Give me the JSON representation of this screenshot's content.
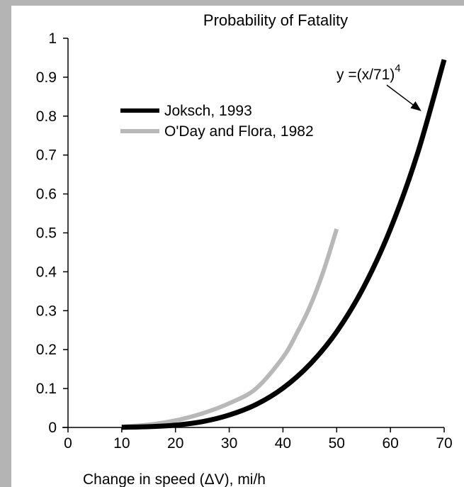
{
  "chart_data": {
    "type": "line",
    "title": "Probability of Fatality",
    "xlabel": "Change in speed (ΔV), mi/h",
    "ylabel": "",
    "xlim": [
      0,
      70
    ],
    "ylim": [
      0,
      1
    ],
    "x_ticks": [
      0,
      10,
      20,
      30,
      40,
      50,
      60,
      70
    ],
    "x_tick_labels": [
      "0",
      "10",
      "20",
      "30",
      "40",
      "50",
      "60",
      "70"
    ],
    "y_ticks": [
      0,
      0.1,
      0.2,
      0.3,
      0.4,
      0.5,
      0.6,
      0.7,
      0.8,
      0.9,
      1
    ],
    "y_tick_labels": [
      "0",
      "0.1",
      "0.2",
      "0.3",
      "0.4",
      "0.5",
      "0.6",
      "0.7",
      "0.8",
      "0.9",
      "1"
    ],
    "grid": false,
    "legend_position": "upper-left",
    "series": [
      {
        "name": "Joksch, 1993",
        "color": "#000000",
        "x": [
          10,
          15,
          20,
          25,
          30,
          35,
          40,
          45,
          50,
          55,
          60,
          65,
          70
        ],
        "y": [
          0.0004,
          0.002,
          0.006,
          0.015,
          0.032,
          0.059,
          0.101,
          0.162,
          0.246,
          0.36,
          0.51,
          0.702,
          0.945
        ]
      },
      {
        "name": "O'Day and Flora, 1982",
        "color": "#b8b8b8",
        "x": [
          10,
          15,
          20,
          25,
          30,
          35,
          40,
          42.5,
          45,
          47.5,
          50
        ],
        "y": [
          0.002,
          0.007,
          0.018,
          0.036,
          0.062,
          0.1,
          0.18,
          0.24,
          0.31,
          0.4,
          0.51
        ]
      }
    ],
    "annotations": [
      {
        "text": "y =(x/71)",
        "superscript": "4",
        "points_to": {
          "x": 66,
          "y": 0.8
        }
      }
    ]
  }
}
